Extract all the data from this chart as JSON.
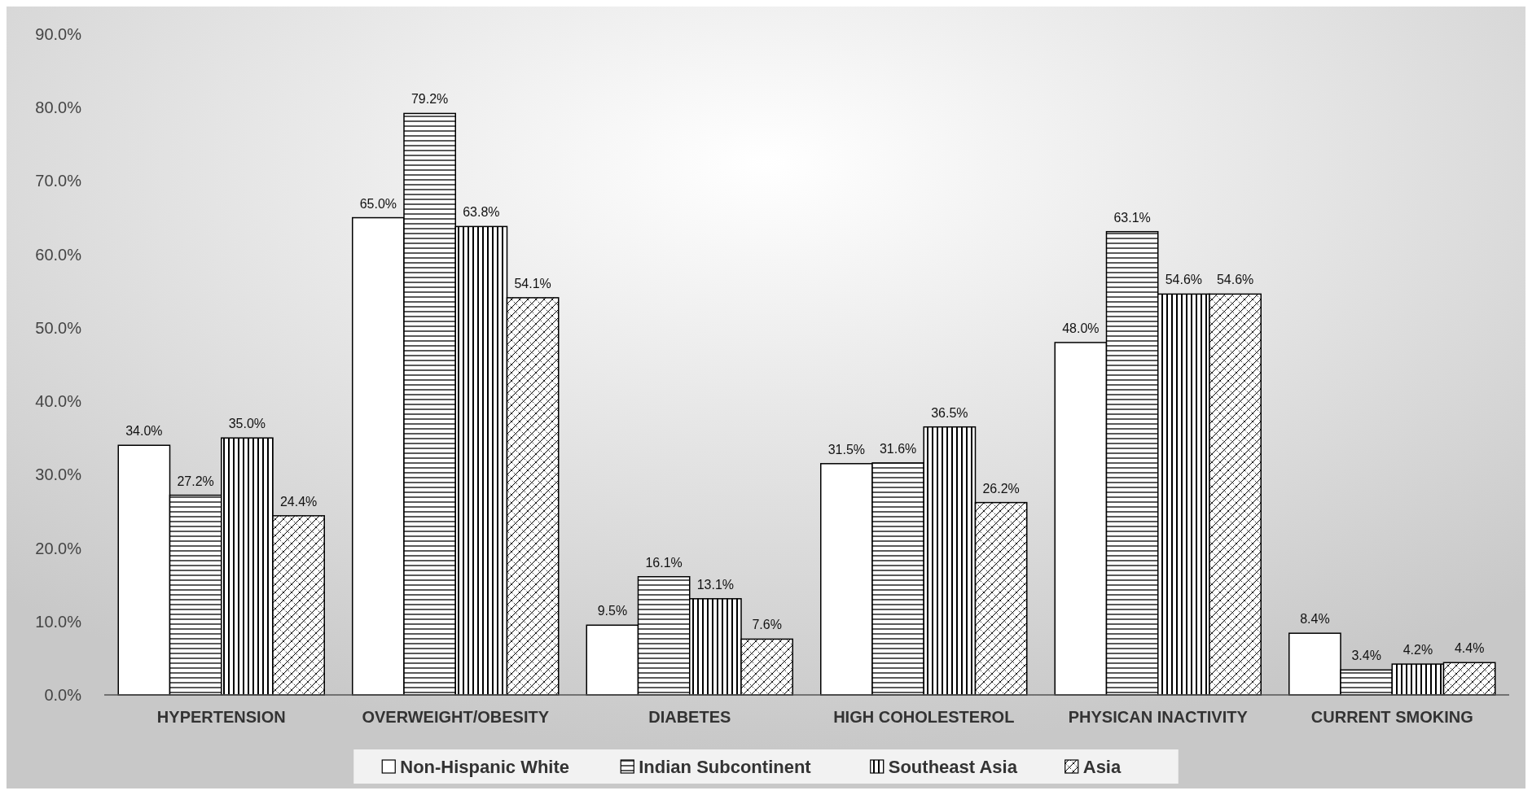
{
  "chart_data": {
    "type": "bar",
    "categories": [
      "HYPERTENSION",
      "OVERWEIGHT/OBESITY",
      "DIABETES",
      "HIGH COHOLESTEROL",
      "PHYSICAN INACTIVITY",
      "CURRENT SMOKING"
    ],
    "series": [
      {
        "name": "Non-Hispanic White",
        "color": "#ffffff",
        "values": [
          34.0,
          65.0,
          9.5,
          31.5,
          48.0,
          8.4
        ],
        "value_labels": [
          "34.0%",
          "65.0%",
          "9.5%",
          "31.5%",
          "48.0%",
          "8.4%"
        ]
      },
      {
        "name": "Indian Subcontinent",
        "color": "#000000",
        "values": [
          27.2,
          79.2,
          16.1,
          31.6,
          63.1,
          3.4
        ],
        "value_labels": [
          "27.2%",
          "79.2%",
          "16.1%",
          "31.6%",
          "63.1%",
          "3.4%"
        ]
      },
      {
        "name": "Southeast Asia",
        "color": "#000000",
        "values": [
          35.0,
          63.8,
          13.1,
          36.5,
          54.6,
          4.2
        ],
        "value_labels": [
          "35.0%",
          "63.8%",
          "13.1%",
          "36.5%",
          "54.6%",
          "4.2%"
        ]
      },
      {
        "name": "Asia",
        "color": "#000000",
        "values": [
          24.4,
          54.1,
          7.6,
          26.2,
          54.6,
          4.4
        ],
        "value_labels": [
          "24.4%",
          "54.1%",
          "7.6%",
          "26.2%",
          "54.6%",
          "4.4%"
        ]
      }
    ],
    "ylim": [
      0,
      90
    ],
    "yticks": [
      {
        "value": 0,
        "label": "0.0%"
      },
      {
        "value": 10,
        "label": "10.0%"
      },
      {
        "value": 20,
        "label": "20.0%"
      },
      {
        "value": 30,
        "label": "30.0%"
      },
      {
        "value": 40,
        "label": "40.0%"
      },
      {
        "value": 50,
        "label": "50.0%"
      },
      {
        "value": 60,
        "label": "60.0%"
      },
      {
        "value": 70,
        "label": "70.0%"
      },
      {
        "value": 80,
        "label": "80.0%"
      },
      {
        "value": 90,
        "label": "90.0%"
      }
    ],
    "grid": false,
    "legend": "bottom"
  }
}
